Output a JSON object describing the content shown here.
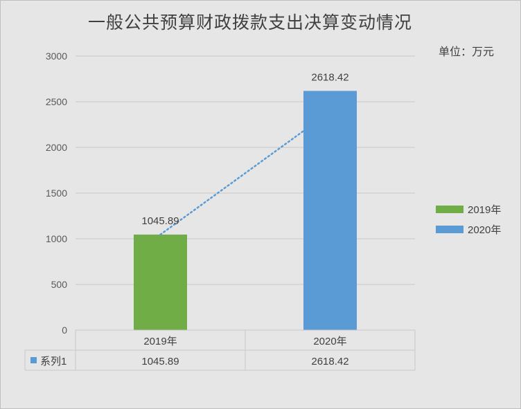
{
  "chart_data": {
    "type": "bar",
    "title": "一般公共预算财政拨款支出决算变动情况",
    "unit_label": "单位：万元",
    "categories": [
      "2019年",
      "2020年"
    ],
    "values": [
      1045.89,
      2618.42
    ],
    "value_labels": [
      "1045.89",
      "2618.42"
    ],
    "bar_colors": [
      "#70ad47",
      "#5b9bd5"
    ],
    "legend": [
      {
        "name": "2019年",
        "color": "#70ad47"
      },
      {
        "name": "2020年",
        "color": "#5b9bd5"
      }
    ],
    "legend_position": "right",
    "ylim": [
      0,
      3000
    ],
    "yticks": [
      "0",
      "500",
      "1000",
      "1500",
      "2000",
      "2500",
      "3000"
    ],
    "grid": true,
    "trendline": {
      "style": "dotted",
      "color": "#5b9bd5"
    },
    "data_table": {
      "series_name": "系列1",
      "series_color": "#5b9bd5",
      "values": [
        "1045.89",
        "2618.42"
      ]
    }
  }
}
